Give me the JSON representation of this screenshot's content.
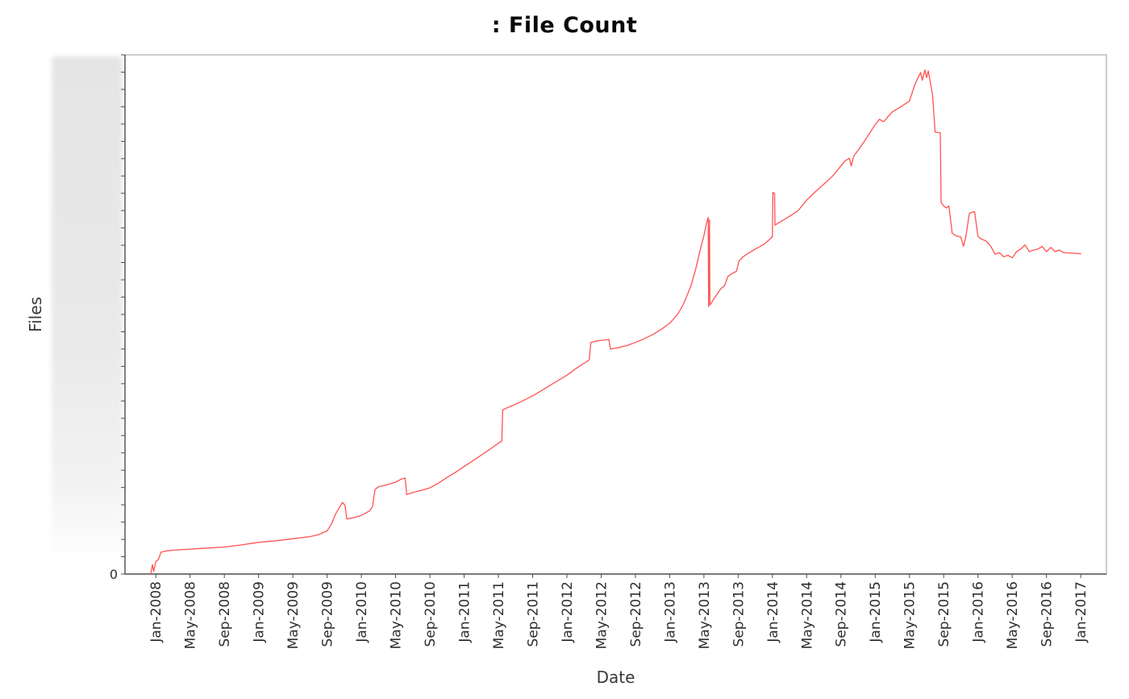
{
  "page": {
    "background": "#ffffff"
  },
  "colors": {
    "line": "#ff5252",
    "axis": "#4d4d4d",
    "border": "#9a9a9a",
    "tick_text": "#2e2e2e"
  },
  "chart_data": {
    "type": "line",
    "title": ": File Count",
    "xlabel": "Date",
    "ylabel": "Files",
    "legend": "none",
    "grid": false,
    "x_tick_labels": [
      "Jan-2008",
      "May-2008",
      "Sep-2008",
      "Jan-2009",
      "May-2009",
      "Sep-2009",
      "Jan-2010",
      "May-2010",
      "Sep-2010",
      "Jan-2011",
      "May-2011",
      "Sep-2011",
      "Jan-2012",
      "May-2012",
      "Sep-2012",
      "Jan-2013",
      "May-2013",
      "Sep-2013",
      "Jan-2014",
      "May-2014",
      "Sep-2014",
      "Jan-2015",
      "May-2015",
      "Sep-2015",
      "Jan-2016",
      "May-2016",
      "Sep-2016",
      "Jan-2017"
    ],
    "x_tick_interval_months": 4,
    "y_tick_labels": [
      "0"
    ],
    "y_axis_note": "numeric y-axis labels are obscured except 0; series values are relative units 0-100 of plot height",
    "xlim_months": [
      -3.6,
      111
    ],
    "ylim": [
      0,
      100
    ],
    "series": [
      {
        "name": "File Count",
        "color": "#ff5252",
        "points": [
          [
            -0.6,
            0
          ],
          [
            -0.4,
            1.8
          ],
          [
            -0.25,
            0.5
          ],
          [
            0,
            2.4
          ],
          [
            0.3,
            2.8
          ],
          [
            0.6,
            4.2
          ],
          [
            1,
            4.4
          ],
          [
            2,
            4.6
          ],
          [
            4,
            4.8
          ],
          [
            6,
            5.0
          ],
          [
            8,
            5.2
          ],
          [
            10,
            5.6
          ],
          [
            12,
            6.1
          ],
          [
            14,
            6.4
          ],
          [
            16,
            6.8
          ],
          [
            18,
            7.2
          ],
          [
            19,
            7.6
          ],
          [
            20,
            8.3
          ],
          [
            20.5,
            9.6
          ],
          [
            21,
            11.6
          ],
          [
            21.5,
            13.0
          ],
          [
            21.8,
            13.8
          ],
          [
            22.1,
            13.2
          ],
          [
            22.3,
            10.6
          ],
          [
            23,
            10.8
          ],
          [
            24,
            11.3
          ],
          [
            25,
            12.2
          ],
          [
            25.3,
            13.0
          ],
          [
            25.6,
            16.3
          ],
          [
            26,
            16.8
          ],
          [
            27,
            17.2
          ],
          [
            28,
            17.7
          ],
          [
            28.7,
            18.3
          ],
          [
            29.1,
            18.5
          ],
          [
            29.3,
            15.3
          ],
          [
            30,
            15.7
          ],
          [
            31,
            16.1
          ],
          [
            32,
            16.6
          ],
          [
            33,
            17.5
          ],
          [
            34,
            18.6
          ],
          [
            35,
            19.6
          ],
          [
            36,
            20.7
          ],
          [
            37,
            21.8
          ],
          [
            38,
            22.9
          ],
          [
            39,
            24.0
          ],
          [
            40,
            25.2
          ],
          [
            40.4,
            25.6
          ],
          [
            40.5,
            31.6
          ],
          [
            41,
            32.0
          ],
          [
            42,
            32.7
          ],
          [
            43,
            33.5
          ],
          [
            44,
            34.3
          ],
          [
            45,
            35.3
          ],
          [
            46,
            36.3
          ],
          [
            47,
            37.3
          ],
          [
            48,
            38.3
          ],
          [
            49,
            39.5
          ],
          [
            50,
            40.6
          ],
          [
            50.6,
            41.2
          ],
          [
            50.8,
            44.6
          ],
          [
            51.5,
            44.9
          ],
          [
            52.5,
            45.1
          ],
          [
            52.9,
            45.2
          ],
          [
            53.1,
            43.3
          ],
          [
            54,
            43.6
          ],
          [
            55,
            44.0
          ],
          [
            56,
            44.6
          ],
          [
            57,
            45.3
          ],
          [
            58,
            46.1
          ],
          [
            59,
            47.1
          ],
          [
            60,
            48.3
          ],
          [
            60.5,
            49.2
          ],
          [
            61,
            50.2
          ],
          [
            61.5,
            51.6
          ],
          [
            62,
            53.5
          ],
          [
            62.5,
            55.6
          ],
          [
            63,
            58.5
          ],
          [
            63.5,
            62.0
          ],
          [
            64,
            65.2
          ],
          [
            64.3,
            67.6
          ],
          [
            64.5,
            68.7
          ],
          [
            64.55,
            51.5
          ],
          [
            64.65,
            68.2
          ],
          [
            64.7,
            51.8
          ],
          [
            65,
            52.6
          ],
          [
            65.5,
            53.8
          ],
          [
            66,
            55.0
          ],
          [
            66.4,
            55.5
          ],
          [
            66.8,
            57.3
          ],
          [
            67.2,
            57.8
          ],
          [
            67.8,
            58.3
          ],
          [
            68.1,
            60.3
          ],
          [
            68.5,
            61.0
          ],
          [
            69,
            61.6
          ],
          [
            70,
            62.6
          ],
          [
            71,
            63.5
          ],
          [
            71.5,
            64.2
          ],
          [
            72,
            65.0
          ],
          [
            72.05,
            73.5
          ],
          [
            72.25,
            73.3
          ],
          [
            72.3,
            67.2
          ],
          [
            73,
            67.9
          ],
          [
            74,
            68.9
          ],
          [
            75,
            70.0
          ],
          [
            76,
            72.0
          ],
          [
            77,
            73.6
          ],
          [
            78,
            75.1
          ],
          [
            79,
            76.6
          ],
          [
            80,
            78.6
          ],
          [
            80.5,
            79.6
          ],
          [
            81,
            80.1
          ],
          [
            81.2,
            78.6
          ],
          [
            81.5,
            80.5
          ],
          [
            82,
            81.6
          ],
          [
            83,
            84.0
          ],
          [
            84,
            86.6
          ],
          [
            84.5,
            87.6
          ],
          [
            85,
            87.1
          ],
          [
            85.5,
            88.1
          ],
          [
            86,
            89.0
          ],
          [
            87,
            90.0
          ],
          [
            88,
            91.1
          ],
          [
            88.3,
            92.6
          ],
          [
            88.6,
            94.1
          ],
          [
            89,
            95.6
          ],
          [
            89.3,
            96.6
          ],
          [
            89.5,
            95.1
          ],
          [
            89.8,
            97.1
          ],
          [
            90,
            95.6
          ],
          [
            90.2,
            96.9
          ],
          [
            90.5,
            94.1
          ],
          [
            90.7,
            92.3
          ],
          [
            91,
            85.1
          ],
          [
            91.6,
            85.0
          ],
          [
            91.7,
            71.6
          ],
          [
            92,
            70.9
          ],
          [
            92.3,
            70.5
          ],
          [
            92.6,
            70.9
          ],
          [
            93,
            65.6
          ],
          [
            93.5,
            65.1
          ],
          [
            94,
            64.9
          ],
          [
            94.3,
            63.1
          ],
          [
            94.6,
            65.1
          ],
          [
            95,
            69.5
          ],
          [
            95.6,
            69.8
          ],
          [
            96,
            65.1
          ],
          [
            96.3,
            64.6
          ],
          [
            97,
            64.1
          ],
          [
            97.5,
            63.1
          ],
          [
            98,
            61.6
          ],
          [
            98.5,
            61.9
          ],
          [
            99,
            61.1
          ],
          [
            99.5,
            61.4
          ],
          [
            100,
            60.9
          ],
          [
            100.5,
            62.1
          ],
          [
            101,
            62.6
          ],
          [
            101.5,
            63.4
          ],
          [
            102,
            62.1
          ],
          [
            102.5,
            62.4
          ],
          [
            103,
            62.6
          ],
          [
            103.5,
            63.1
          ],
          [
            104,
            62.1
          ],
          [
            104.5,
            62.9
          ],
          [
            105,
            62.1
          ],
          [
            105.5,
            62.4
          ],
          [
            106,
            61.9
          ],
          [
            107,
            61.8
          ],
          [
            108,
            61.7
          ]
        ]
      }
    ]
  }
}
